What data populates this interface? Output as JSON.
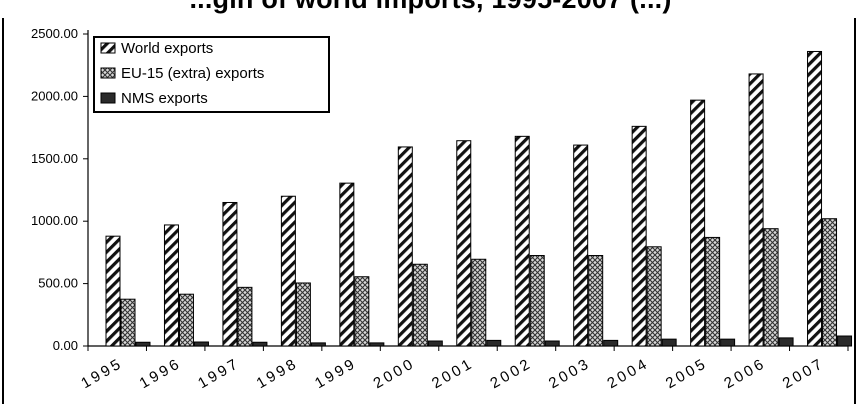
{
  "page": {
    "title": "...gin of world imports, 1995-2007 (...)"
  },
  "chart_data": {
    "type": "bar",
    "title": "",
    "xlabel": "",
    "ylabel": "",
    "ylim": [
      0,
      2500
    ],
    "yticks": [
      "0.00",
      "500.00",
      "1000.00",
      "1500.00",
      "2000.00",
      "2500.00"
    ],
    "categories": [
      "1995",
      "1996",
      "1997",
      "1998",
      "1999",
      "2000",
      "2001",
      "2002",
      "2003",
      "2004",
      "2005",
      "2006",
      "2007"
    ],
    "legend_position": "top-left",
    "grid": false,
    "series": [
      {
        "name": "World exports",
        "pattern": "diagonal-stripes",
        "values": [
          880,
          970,
          1150,
          1200,
          1305,
          1595,
          1645,
          1680,
          1610,
          1760,
          1970,
          2180,
          2360
        ]
      },
      {
        "name": "EU-15 (extra) exports",
        "pattern": "crosshatch",
        "values": [
          375,
          415,
          470,
          505,
          555,
          655,
          695,
          725,
          725,
          795,
          870,
          940,
          1020
        ]
      },
      {
        "name": "NMS exports",
        "pattern": "dark-solid",
        "values": [
          30,
          32,
          30,
          25,
          25,
          40,
          45,
          40,
          45,
          55,
          55,
          65,
          80
        ]
      }
    ]
  }
}
